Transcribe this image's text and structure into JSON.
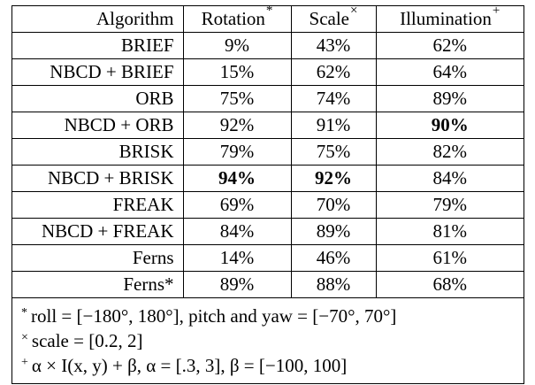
{
  "table": {
    "headers": [
      {
        "label": "Algorithm",
        "mark": ""
      },
      {
        "label": "Rotation",
        "mark": "*"
      },
      {
        "label": "Scale",
        "mark": "×"
      },
      {
        "label": "Illumination",
        "mark": "+"
      }
    ],
    "rows": [
      {
        "algorithm": "BRIEF",
        "rotation": "9%",
        "scale": "43%",
        "illumination": "62%",
        "bold": []
      },
      {
        "algorithm": "NBCD + BRIEF",
        "rotation": "15%",
        "scale": "62%",
        "illumination": "64%",
        "bold": []
      },
      {
        "algorithm": "ORB",
        "rotation": "75%",
        "scale": "74%",
        "illumination": "89%",
        "bold": []
      },
      {
        "algorithm": "NBCD + ORB",
        "rotation": "92%",
        "scale": "91%",
        "illumination": "90%",
        "bold": [
          "illumination"
        ]
      },
      {
        "algorithm": "BRISK",
        "rotation": "79%",
        "scale": "75%",
        "illumination": "82%",
        "bold": []
      },
      {
        "algorithm": "NBCD + BRISK",
        "rotation": "94%",
        "scale": "92%",
        "illumination": "84%",
        "bold": [
          "rotation",
          "scale"
        ]
      },
      {
        "algorithm": "FREAK",
        "rotation": "69%",
        "scale": "70%",
        "illumination": "79%",
        "bold": []
      },
      {
        "algorithm": "NBCD + FREAK",
        "rotation": "84%",
        "scale": "89%",
        "illumination": "81%",
        "bold": []
      },
      {
        "algorithm": "Ferns",
        "rotation": "14%",
        "scale": "46%",
        "illumination": "61%",
        "bold": []
      },
      {
        "algorithm": "Ferns*",
        "rotation": "89%",
        "scale": "88%",
        "illumination": "68%",
        "bold": []
      }
    ]
  },
  "notes": [
    {
      "mark": "*",
      "text": "roll = [−180°, 180°], pitch and yaw = [−70°, 70°]"
    },
    {
      "mark": "×",
      "text": "scale = [0.2, 2]"
    },
    {
      "mark": "+",
      "text": "α × I(x, y) + β, α = [.3, 3], β = [−100, 100]"
    }
  ]
}
